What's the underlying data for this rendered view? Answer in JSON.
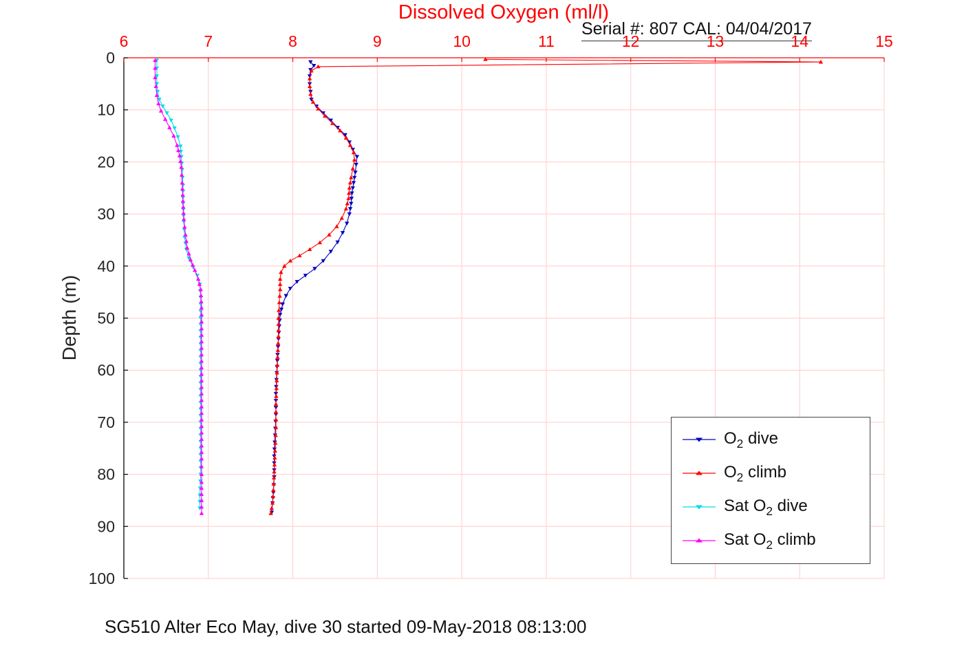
{
  "chart_data": {
    "type": "line",
    "title": "Dissolved Oxygen (ml/l)",
    "annotation": "Serial #: 807  CAL: 04/04/2017",
    "caption": "SG510 Alter Eco May, dive 30 started 09-May-2018 08:13:00",
    "xlabel": "",
    "ylabel": "Depth (m)",
    "xlim": [
      6,
      15
    ],
    "ylim": [
      0,
      100
    ],
    "y_inverted": true,
    "grid": true,
    "legend_position": "bottom-right",
    "x_ticks": [
      6,
      7,
      8,
      9,
      10,
      11,
      12,
      13,
      14,
      15
    ],
    "y_ticks": [
      0,
      10,
      20,
      30,
      40,
      50,
      60,
      70,
      80,
      90,
      100
    ],
    "colors": {
      "x_axis": "#ff0000",
      "y_axis": "#000000",
      "grid": "#ffcccc",
      "tick_label_x": "#ff0000",
      "tick_label_y": "#262626"
    },
    "points_format": "[dissolved_o2_ml_per_l, depth_m]",
    "legend": [
      {
        "main": "O",
        "sub": "2",
        "rest": " dive"
      },
      {
        "main": "O",
        "sub": "2",
        "rest": " climb"
      },
      {
        "main": "Sat O",
        "sub": "2",
        "rest": " dive"
      },
      {
        "main": "Sat O",
        "sub": "2",
        "rest": " climb"
      }
    ],
    "series": [
      {
        "name": "O2 dive",
        "color": "#0000c0",
        "marker": "v",
        "points": [
          [
            8.21,
            0.8
          ],
          [
            8.25,
            1.5
          ],
          [
            8.21,
            2.3
          ],
          [
            8.2,
            3.5
          ],
          [
            8.2,
            5.0
          ],
          [
            8.21,
            6.5
          ],
          [
            8.22,
            8.0
          ],
          [
            8.28,
            9.3
          ],
          [
            8.36,
            10.6
          ],
          [
            8.45,
            12.0
          ],
          [
            8.53,
            13.4
          ],
          [
            8.62,
            14.8
          ],
          [
            8.67,
            16.2
          ],
          [
            8.71,
            17.6
          ],
          [
            8.76,
            19.0
          ],
          [
            8.75,
            20.5
          ],
          [
            8.74,
            22.0
          ],
          [
            8.72,
            24.0
          ],
          [
            8.7,
            26.0
          ],
          [
            8.69,
            28.0
          ],
          [
            8.67,
            30.0
          ],
          [
            8.64,
            31.8
          ],
          [
            8.59,
            33.6
          ],
          [
            8.53,
            35.4
          ],
          [
            8.45,
            37.2
          ],
          [
            8.36,
            39.0
          ],
          [
            8.26,
            40.5
          ],
          [
            8.15,
            41.8
          ],
          [
            8.05,
            43.0
          ],
          [
            7.97,
            44.3
          ],
          [
            7.92,
            45.7
          ],
          [
            7.88,
            47.3
          ],
          [
            7.85,
            49.3
          ],
          [
            7.84,
            51.5
          ],
          [
            7.83,
            54.0
          ],
          [
            7.82,
            57.0
          ],
          [
            7.81,
            60.5
          ],
          [
            7.8,
            64.5
          ],
          [
            7.8,
            68.5
          ],
          [
            7.79,
            72.5
          ],
          [
            7.78,
            76.5
          ],
          [
            7.78,
            80.5
          ],
          [
            7.77,
            83.5
          ],
          [
            7.76,
            85.5
          ],
          [
            7.75,
            87.3
          ]
        ]
      },
      {
        "name": "O2 climb",
        "color": "#ff0000",
        "marker": "^",
        "points": [
          [
            10.28,
            0.3
          ],
          [
            14.25,
            0.8
          ],
          [
            8.3,
            1.7
          ],
          [
            8.22,
            2.5
          ],
          [
            8.2,
            4.0
          ],
          [
            8.2,
            5.5
          ],
          [
            8.21,
            7.0
          ],
          [
            8.24,
            8.5
          ],
          [
            8.3,
            9.8
          ],
          [
            8.38,
            11.2
          ],
          [
            8.47,
            12.6
          ],
          [
            8.56,
            14.0
          ],
          [
            8.63,
            15.4
          ],
          [
            8.68,
            16.8
          ],
          [
            8.72,
            18.2
          ],
          [
            8.73,
            19.6
          ],
          [
            8.71,
            21.3
          ],
          [
            8.69,
            23.0
          ],
          [
            8.67,
            25.0
          ],
          [
            8.66,
            27.0
          ],
          [
            8.63,
            29.0
          ],
          [
            8.58,
            30.8
          ],
          [
            8.52,
            32.4
          ],
          [
            8.43,
            34.0
          ],
          [
            8.32,
            35.5
          ],
          [
            8.2,
            36.8
          ],
          [
            8.08,
            38.0
          ],
          [
            7.97,
            39.0
          ],
          [
            7.9,
            40.0
          ],
          [
            7.86,
            41.2
          ],
          [
            7.85,
            42.5
          ],
          [
            7.85,
            44.5
          ],
          [
            7.84,
            47.0
          ],
          [
            7.83,
            50.0
          ],
          [
            7.83,
            53.5
          ],
          [
            7.82,
            57.5
          ],
          [
            7.81,
            62.0
          ],
          [
            7.8,
            66.5
          ],
          [
            7.8,
            71.0
          ],
          [
            7.79,
            75.5
          ],
          [
            7.78,
            79.5
          ],
          [
            7.77,
            83.0
          ],
          [
            7.76,
            85.5
          ],
          [
            7.74,
            87.5
          ]
        ]
      },
      {
        "name": "Sat O2 dive",
        "color": "#00dde6",
        "marker": "v",
        "points": [
          [
            6.39,
            0.5
          ],
          [
            6.39,
            2.0
          ],
          [
            6.39,
            3.5
          ],
          [
            6.39,
            5.0
          ],
          [
            6.4,
            6.5
          ],
          [
            6.42,
            8.0
          ],
          [
            6.46,
            9.3
          ],
          [
            6.51,
            10.6
          ],
          [
            6.56,
            12.0
          ],
          [
            6.6,
            13.5
          ],
          [
            6.64,
            15.2
          ],
          [
            6.67,
            17.0
          ],
          [
            6.68,
            19.0
          ],
          [
            6.69,
            21.5
          ],
          [
            6.7,
            24.5
          ],
          [
            6.7,
            28.0
          ],
          [
            6.71,
            31.5
          ],
          [
            6.72,
            34.5
          ],
          [
            6.74,
            36.8
          ],
          [
            6.77,
            38.5
          ],
          [
            6.82,
            40.2
          ],
          [
            6.87,
            41.8
          ],
          [
            6.9,
            43.5
          ],
          [
            6.91,
            46.0
          ],
          [
            6.91,
            50.0
          ],
          [
            6.91,
            55.0
          ],
          [
            6.91,
            60.0
          ],
          [
            6.91,
            65.0
          ],
          [
            6.91,
            70.0
          ],
          [
            6.91,
            75.0
          ],
          [
            6.91,
            80.0
          ],
          [
            6.9,
            84.0
          ],
          [
            6.9,
            86.5
          ]
        ]
      },
      {
        "name": "Sat O2 climb",
        "color": "#ff00ff",
        "marker": "^",
        "points": [
          [
            6.37,
            0.5
          ],
          [
            6.37,
            2.0
          ],
          [
            6.37,
            3.8
          ],
          [
            6.38,
            5.5
          ],
          [
            6.39,
            7.2
          ],
          [
            6.41,
            8.8
          ],
          [
            6.44,
            10.2
          ],
          [
            6.49,
            11.8
          ],
          [
            6.54,
            13.4
          ],
          [
            6.59,
            15.0
          ],
          [
            6.63,
            16.8
          ],
          [
            6.66,
            18.8
          ],
          [
            6.68,
            21.0
          ],
          [
            6.69,
            24.0
          ],
          [
            6.7,
            27.5
          ],
          [
            6.71,
            31.0
          ],
          [
            6.73,
            34.0
          ],
          [
            6.75,
            36.5
          ],
          [
            6.79,
            38.8
          ],
          [
            6.84,
            40.8
          ],
          [
            6.88,
            42.5
          ],
          [
            6.91,
            44.5
          ],
          [
            6.92,
            48.0
          ],
          [
            6.92,
            52.0
          ],
          [
            6.92,
            57.0
          ],
          [
            6.92,
            62.0
          ],
          [
            6.92,
            67.0
          ],
          [
            6.92,
            72.0
          ],
          [
            6.92,
            77.0
          ],
          [
            6.92,
            81.5
          ],
          [
            6.92,
            85.0
          ],
          [
            6.92,
            87.5
          ]
        ]
      }
    ]
  }
}
